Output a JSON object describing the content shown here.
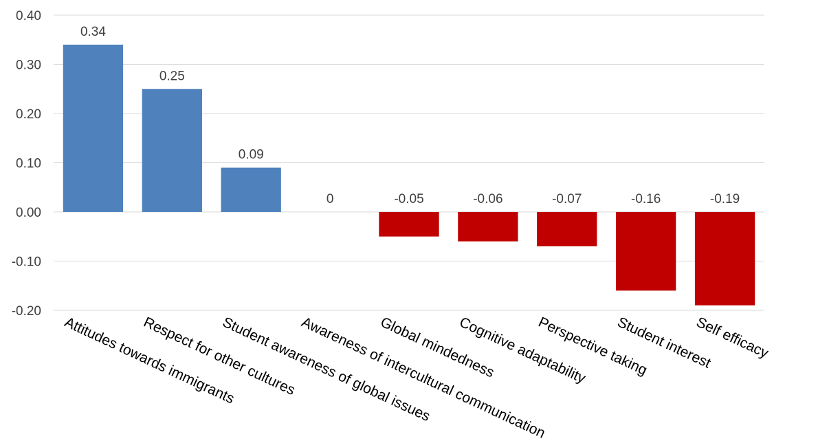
{
  "chart_data": {
    "type": "bar",
    "categories": [
      "Attitudes towards immigrants",
      "Respect for other cultures",
      "Student awareness of global issues",
      "Awareness of intercultural communication",
      "Global mindedness",
      "Cognitive adaptability",
      "Perspective taking",
      "Student interest",
      "Self efficacy"
    ],
    "values": [
      0.34,
      0.25,
      0.09,
      0,
      -0.05,
      -0.06,
      -0.07,
      -0.16,
      -0.19
    ],
    "data_labels": [
      "0.34",
      "0.25",
      "0.09",
      "0",
      "-0.05",
      "-0.06",
      "-0.07",
      "-0.16",
      "-0.19"
    ],
    "ylim": [
      -0.2,
      0.4
    ],
    "yticks": [
      0.4,
      0.3,
      0.2,
      0.1,
      0.0,
      -0.1,
      -0.2
    ],
    "ytick_labels": [
      "0.40",
      "0.30",
      "0.20",
      "0.10",
      "0.00",
      "-0.10",
      "-0.20"
    ],
    "title": "",
    "xlabel": "",
    "ylabel": "",
    "grid": true,
    "colors": {
      "positive": "#4f81bd",
      "negative": "#c00000"
    }
  }
}
